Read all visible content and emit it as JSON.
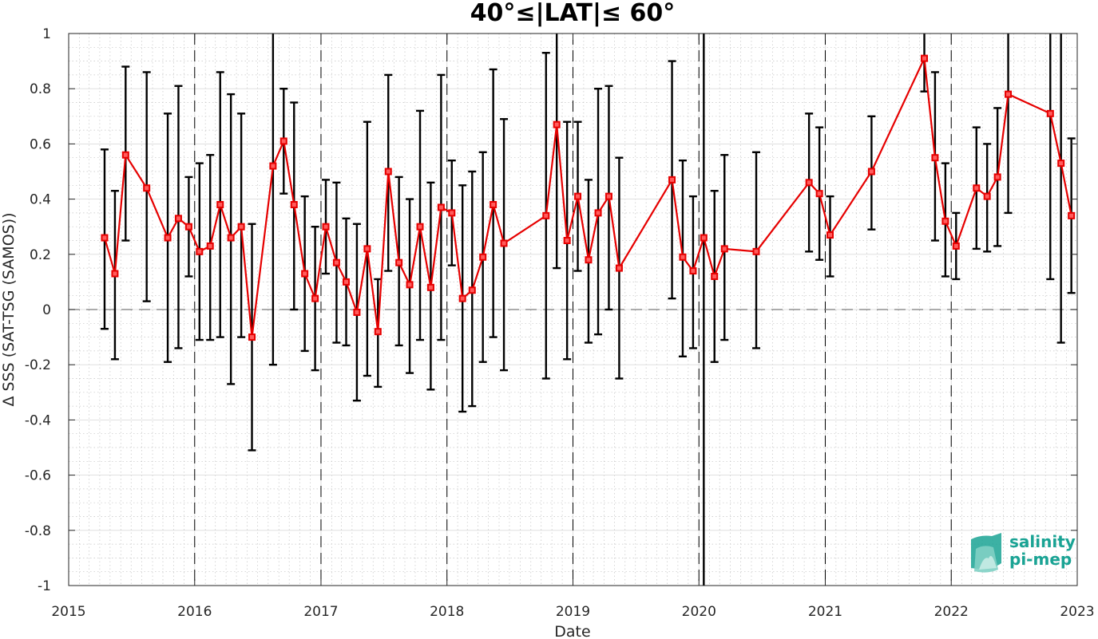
{
  "chart_data": {
    "type": "line",
    "title": "40°≤|LAT|≤ 60°",
    "xlabel": "Date",
    "ylabel": "Δ SSS (SAT-TSG (SAMOS))",
    "xlim": [
      "2015-01-01",
      "2023-01-01"
    ],
    "ylim": [
      -1,
      1
    ],
    "x_ticks": [
      "2015",
      "2016",
      "2017",
      "2018",
      "2019",
      "2020",
      "2021",
      "2022",
      "2023"
    ],
    "y_ticks": [
      "-1",
      "-0.8",
      "-0.6",
      "-0.4",
      "-0.2",
      "0",
      "0.2",
      "0.4",
      "0.6",
      "0.8",
      "1"
    ],
    "grid": true,
    "year_dividers": [
      "2016",
      "2017",
      "2018",
      "2019",
      "2020",
      "2021",
      "2022"
    ],
    "reference_line": 0,
    "series": [
      {
        "color": "#e60000",
        "marker": "square",
        "points": [
          {
            "date": "2015-04-15",
            "y": 0.26,
            "lo": -0.07,
            "hi": 0.58
          },
          {
            "date": "2015-05-15",
            "y": 0.13,
            "lo": -0.18,
            "hi": 0.43
          },
          {
            "date": "2015-06-15",
            "y": 0.56,
            "lo": 0.25,
            "hi": 0.88
          },
          {
            "date": "2015-08-15",
            "y": 0.44,
            "lo": 0.03,
            "hi": 0.86
          },
          {
            "date": "2015-10-15",
            "y": 0.26,
            "lo": -0.19,
            "hi": 0.71
          },
          {
            "date": "2015-11-15",
            "y": 0.33,
            "lo": -0.14,
            "hi": 0.81
          },
          {
            "date": "2015-12-15",
            "y": 0.3,
            "lo": 0.12,
            "hi": 0.48
          },
          {
            "date": "2016-01-15",
            "y": 0.21,
            "lo": -0.11,
            "hi": 0.53
          },
          {
            "date": "2016-02-15",
            "y": 0.23,
            "lo": -0.11,
            "hi": 0.56
          },
          {
            "date": "2016-03-15",
            "y": 0.38,
            "lo": -0.1,
            "hi": 0.86
          },
          {
            "date": "2016-04-15",
            "y": 0.26,
            "lo": -0.27,
            "hi": 0.78
          },
          {
            "date": "2016-05-15",
            "y": 0.3,
            "lo": -0.1,
            "hi": 0.71
          },
          {
            "date": "2016-06-15",
            "y": -0.1,
            "lo": -0.51,
            "hi": 0.31
          },
          {
            "date": "2016-08-15",
            "y": 0.52,
            "lo": -0.2,
            "hi": 1.0
          },
          {
            "date": "2016-09-15",
            "y": 0.61,
            "lo": 0.42,
            "hi": 0.8
          },
          {
            "date": "2016-10-15",
            "y": 0.38,
            "lo": 0.0,
            "hi": 0.75
          },
          {
            "date": "2016-11-15",
            "y": 0.13,
            "lo": -0.15,
            "hi": 0.41
          },
          {
            "date": "2016-12-15",
            "y": 0.04,
            "lo": -0.22,
            "hi": 0.3
          },
          {
            "date": "2017-01-15",
            "y": 0.3,
            "lo": 0.13,
            "hi": 0.47
          },
          {
            "date": "2017-02-15",
            "y": 0.17,
            "lo": -0.12,
            "hi": 0.46
          },
          {
            "date": "2017-03-15",
            "y": 0.1,
            "lo": -0.13,
            "hi": 0.33
          },
          {
            "date": "2017-04-15",
            "y": -0.01,
            "lo": -0.33,
            "hi": 0.31
          },
          {
            "date": "2017-05-15",
            "y": 0.22,
            "lo": -0.24,
            "hi": 0.68
          },
          {
            "date": "2017-06-15",
            "y": -0.08,
            "lo": -0.28,
            "hi": 0.11
          },
          {
            "date": "2017-07-15",
            "y": 0.5,
            "lo": 0.14,
            "hi": 0.85
          },
          {
            "date": "2017-08-15",
            "y": 0.17,
            "lo": -0.13,
            "hi": 0.48
          },
          {
            "date": "2017-09-15",
            "y": 0.09,
            "lo": -0.23,
            "hi": 0.4
          },
          {
            "date": "2017-10-15",
            "y": 0.3,
            "lo": -0.11,
            "hi": 0.72
          },
          {
            "date": "2017-11-15",
            "y": 0.08,
            "lo": -0.29,
            "hi": 0.46
          },
          {
            "date": "2017-12-15",
            "y": 0.37,
            "lo": -0.11,
            "hi": 0.85
          },
          {
            "date": "2018-01-15",
            "y": 0.35,
            "lo": 0.16,
            "hi": 0.54
          },
          {
            "date": "2018-02-15",
            "y": 0.04,
            "lo": -0.37,
            "hi": 0.45
          },
          {
            "date": "2018-03-15",
            "y": 0.07,
            "lo": -0.35,
            "hi": 0.5
          },
          {
            "date": "2018-04-15",
            "y": 0.19,
            "lo": -0.19,
            "hi": 0.57
          },
          {
            "date": "2018-05-15",
            "y": 0.38,
            "lo": -0.1,
            "hi": 0.87
          },
          {
            "date": "2018-06-15",
            "y": 0.24,
            "lo": -0.22,
            "hi": 0.69
          },
          {
            "date": "2018-10-15",
            "y": 0.34,
            "lo": -0.25,
            "hi": 0.93
          },
          {
            "date": "2018-11-15",
            "y": 0.67,
            "lo": 0.15,
            "hi": 1.0
          },
          {
            "date": "2018-12-15",
            "y": 0.25,
            "lo": -0.18,
            "hi": 0.68
          },
          {
            "date": "2019-01-15",
            "y": 0.41,
            "lo": 0.14,
            "hi": 0.68
          },
          {
            "date": "2019-02-15",
            "y": 0.18,
            "lo": -0.12,
            "hi": 0.47
          },
          {
            "date": "2019-03-15",
            "y": 0.35,
            "lo": -0.09,
            "hi": 0.8
          },
          {
            "date": "2019-04-15",
            "y": 0.41,
            "lo": 0.0,
            "hi": 0.81
          },
          {
            "date": "2019-05-15",
            "y": 0.15,
            "lo": -0.25,
            "hi": 0.55
          },
          {
            "date": "2019-10-15",
            "y": 0.47,
            "lo": 0.04,
            "hi": 0.9
          },
          {
            "date": "2019-11-15",
            "y": 0.19,
            "lo": -0.17,
            "hi": 0.54
          },
          {
            "date": "2019-12-15",
            "y": 0.14,
            "lo": -0.14,
            "hi": 0.41
          },
          {
            "date": "2020-01-15",
            "y": 0.26,
            "lo": -1.0,
            "hi": 1.0
          },
          {
            "date": "2020-02-15",
            "y": 0.12,
            "lo": -0.19,
            "hi": 0.43
          },
          {
            "date": "2020-03-15",
            "y": 0.22,
            "lo": -0.11,
            "hi": 0.56
          },
          {
            "date": "2020-06-15",
            "y": 0.21,
            "lo": -0.14,
            "hi": 0.57
          },
          {
            "date": "2020-11-15",
            "y": 0.46,
            "lo": 0.21,
            "hi": 0.71
          },
          {
            "date": "2020-12-15",
            "y": 0.42,
            "lo": 0.18,
            "hi": 0.66
          },
          {
            "date": "2021-01-15",
            "y": 0.27,
            "lo": 0.12,
            "hi": 0.41
          },
          {
            "date": "2021-05-15",
            "y": 0.5,
            "lo": 0.29,
            "hi": 0.7
          },
          {
            "date": "2021-10-15",
            "y": 0.91,
            "lo": 0.79,
            "hi": 1.0
          },
          {
            "date": "2021-11-15",
            "y": 0.55,
            "lo": 0.25,
            "hi": 0.86
          },
          {
            "date": "2021-12-15",
            "y": 0.32,
            "lo": 0.12,
            "hi": 0.53
          },
          {
            "date": "2022-01-15",
            "y": 0.23,
            "lo": 0.11,
            "hi": 0.35
          },
          {
            "date": "2022-03-15",
            "y": 0.44,
            "lo": 0.22,
            "hi": 0.66
          },
          {
            "date": "2022-04-15",
            "y": 0.41,
            "lo": 0.21,
            "hi": 0.6
          },
          {
            "date": "2022-05-15",
            "y": 0.48,
            "lo": 0.23,
            "hi": 0.73
          },
          {
            "date": "2022-06-15",
            "y": 0.78,
            "lo": 0.35,
            "hi": 1.0
          },
          {
            "date": "2022-10-15",
            "y": 0.71,
            "lo": 0.11,
            "hi": 1.0
          },
          {
            "date": "2022-11-15",
            "y": 0.53,
            "lo": -0.12,
            "hi": 1.0
          },
          {
            "date": "2022-12-15",
            "y": 0.34,
            "lo": 0.06,
            "hi": 0.62
          }
        ]
      }
    ]
  },
  "logo": {
    "line1": "salinity",
    "line2": "pi-mep",
    "color": "#1aa394"
  }
}
